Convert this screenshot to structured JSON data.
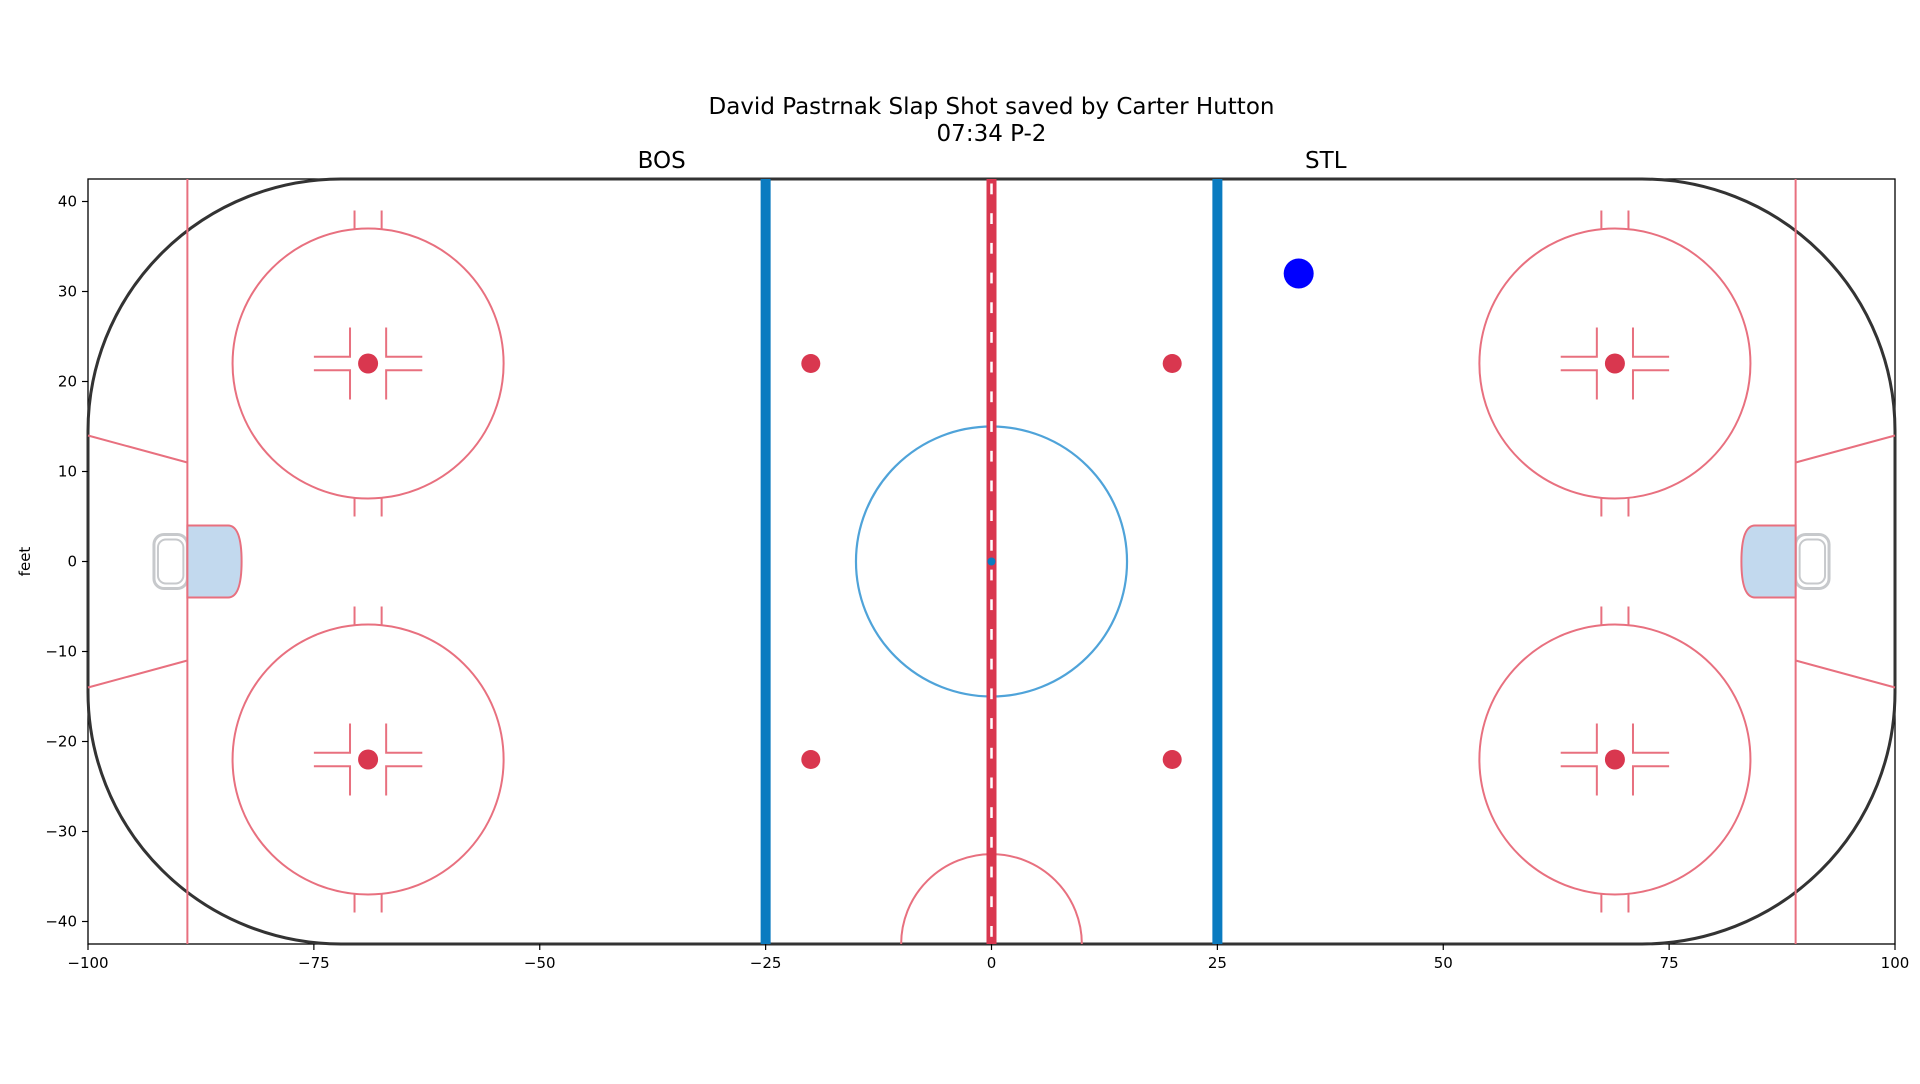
{
  "chart_data": {
    "type": "scatter",
    "title_line1": "David Pastrnak Slap Shot saved by Carter Hutton",
    "title_line2": "07:34 P-2",
    "team_left": "BOS",
    "team_right": "STL",
    "xlabel": "",
    "ylabel": "feet",
    "xlim": [
      -100,
      100
    ],
    "ylim": [
      -42.5,
      42.5
    ],
    "xticks": [
      -100,
      -75,
      -50,
      -25,
      0,
      25,
      50,
      75,
      100
    ],
    "xtick_labels": [
      "−100",
      "−75",
      "−50",
      "−25",
      "0",
      "25",
      "50",
      "75",
      "100"
    ],
    "yticks": [
      40,
      30,
      20,
      10,
      0,
      -10,
      -20,
      -30,
      -40
    ],
    "ytick_labels": [
      "40",
      "30",
      "20",
      "10",
      "0",
      "−10",
      "−20",
      "−30",
      "−40"
    ],
    "grid": false,
    "points": [
      {
        "x": 34,
        "y": 32,
        "color": "#0000ff"
      }
    ],
    "rink": {
      "board_color": "#333333",
      "red_line_color": "#d9374f",
      "blue_line_color": "#0a7bc0",
      "circle_color": "#e8707f",
      "center_circle_color": "#4fa3d9",
      "crease_fill": "#c2d9ee",
      "net_color": "#c7c9cc"
    }
  }
}
